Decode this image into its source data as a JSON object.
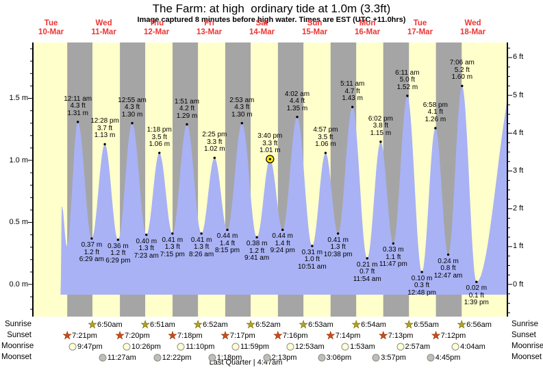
{
  "title": "The Farm: at high  ordinary tide at 1.0m (3.3ft)",
  "subtitle": "Image captured 8 minutes before high water. Times are EST (UTC +11.0hrs)",
  "colors": {
    "day_band": "#ffffcc",
    "night_band": "#a5a5a5",
    "tide_fill": "#a9b2f4",
    "date_text": "#ee3333",
    "axis": "#000000",
    "current_marker": "#ffe800",
    "sunrise_star": "#b3a41f",
    "sunrise_star_edge": "#6b6200",
    "sunset_star": "#d9490f",
    "sunset_star_edge": "#7a2a00",
    "moonrise_fill": "#ffffd6",
    "moonset_fill": "#bfbfb8",
    "moon_edge": "#8a8a8a"
  },
  "chart_data": {
    "type": "area",
    "title": "The Farm: at high  ordinary tide at 1.0m (3.3ft)",
    "subtitle": "Image captured 8 minutes before high water. Times are EST (UTC +11.0hrs)",
    "x_axis": {
      "days": [
        {
          "name": "Tue",
          "date": "10-Mar"
        },
        {
          "name": "Wed",
          "date": "11-Mar"
        },
        {
          "name": "Thu",
          "date": "12-Mar"
        },
        {
          "name": "Fri",
          "date": "13-Mar"
        },
        {
          "name": "Sat",
          "date": "14-Mar"
        },
        {
          "name": "Sun",
          "date": "15-Mar"
        },
        {
          "name": "Mon",
          "date": "16-Mar"
        },
        {
          "name": "Tue",
          "date": "17-Mar"
        },
        {
          "name": "Wed",
          "date": "18-Mar"
        }
      ]
    },
    "y_axis_left": {
      "unit": "m",
      "tick_values": [
        0.0,
        0.5,
        1.0,
        1.5
      ],
      "tick_labels": [
        "0.0 m",
        "0.5 m",
        "1.0 m",
        "1.5 m"
      ],
      "range_m": [
        -0.26,
        1.95
      ]
    },
    "y_axis_right": {
      "unit": "ft",
      "tick_values": [
        0,
        1,
        2,
        3,
        4,
        5,
        6
      ],
      "tick_labels": [
        "0 ft",
        "1 ft",
        "2 ft",
        "3 ft",
        "4 ft",
        "5 ft",
        "6 ft"
      ]
    },
    "extremes": [
      {
        "kind": "high",
        "day": 1,
        "time": "12:11 am",
        "ft": "4.3 ft",
        "m": "1.31 m",
        "m_value": 1.31
      },
      {
        "kind": "low",
        "day": 1,
        "time": "6:29 am",
        "ft": "1.2 ft",
        "m": "0.37 m",
        "m_value": 0.37
      },
      {
        "kind": "high",
        "day": 1,
        "time": "12:28 pm",
        "ft": "3.7 ft",
        "m": "1.13 m",
        "m_value": 1.13
      },
      {
        "kind": "low",
        "day": 1,
        "time": "6:29 pm",
        "ft": "1.2 ft",
        "m": "0.36 m",
        "m_value": 0.36
      },
      {
        "kind": "high",
        "day": 2,
        "time": "12:55 am",
        "ft": "4.3 ft",
        "m": "1.30 m",
        "m_value": 1.3
      },
      {
        "kind": "low",
        "day": 2,
        "time": "7:23 am",
        "ft": "1.3 ft",
        "m": "0.40 m",
        "m_value": 0.4
      },
      {
        "kind": "high",
        "day": 2,
        "time": "1:18 pm",
        "ft": "3.5 ft",
        "m": "1.06 m",
        "m_value": 1.06
      },
      {
        "kind": "low",
        "day": 2,
        "time": "7:15 pm",
        "ft": "1.3 ft",
        "m": "0.41 m",
        "m_value": 0.41
      },
      {
        "kind": "high",
        "day": 3,
        "time": "1:51 am",
        "ft": "4.2 ft",
        "m": "1.29 m",
        "m_value": 1.29
      },
      {
        "kind": "low",
        "day": 3,
        "time": "8:26 am",
        "ft": "1.3 ft",
        "m": "0.41 m",
        "m_value": 0.41
      },
      {
        "kind": "high",
        "day": 3,
        "time": "2:25 pm",
        "ft": "3.3 ft",
        "m": "1.02 m",
        "m_value": 1.02
      },
      {
        "kind": "low",
        "day": 3,
        "time": "8:15 pm",
        "ft": "1.4 ft",
        "m": "0.44 m",
        "m_value": 0.44
      },
      {
        "kind": "high",
        "day": 4,
        "time": "2:53 am",
        "ft": "4.3 ft",
        "m": "1.30 m",
        "m_value": 1.3
      },
      {
        "kind": "low",
        "day": 4,
        "time": "9:41 am",
        "ft": "1.2 ft",
        "m": "0.38 m",
        "m_value": 0.38
      },
      {
        "kind": "high",
        "day": 4,
        "time": "3:40 pm",
        "ft": "3.3 ft",
        "m": "1.01 m",
        "m_value": 1.01,
        "current": true
      },
      {
        "kind": "low",
        "day": 4,
        "time": "9:24 pm",
        "ft": "1.4 ft",
        "m": "0.44 m",
        "m_value": 0.44
      },
      {
        "kind": "high",
        "day": 5,
        "time": "4:02 am",
        "ft": "4.4 ft",
        "m": "1.35 m",
        "m_value": 1.35
      },
      {
        "kind": "low",
        "day": 5,
        "time": "10:51 am",
        "ft": "1.0 ft",
        "m": "0.31 m",
        "m_value": 0.31
      },
      {
        "kind": "high",
        "day": 5,
        "time": "4:57 pm",
        "ft": "3.5 ft",
        "m": "1.06 m",
        "m_value": 1.06
      },
      {
        "kind": "low",
        "day": 5,
        "time": "10:38 pm",
        "ft": "1.3 ft",
        "m": "0.41 m",
        "m_value": 0.41
      },
      {
        "kind": "high",
        "day": 6,
        "time": "5:11 am",
        "ft": "4.7 ft",
        "m": "1.43 m",
        "m_value": 1.43
      },
      {
        "kind": "low",
        "day": 6,
        "time": "11:54 am",
        "ft": "0.7 ft",
        "m": "0.21 m",
        "m_value": 0.21
      },
      {
        "kind": "high",
        "day": 6,
        "time": "6:02 pm",
        "ft": "3.8 ft",
        "m": "1.15 m",
        "m_value": 1.15
      },
      {
        "kind": "low",
        "day": 6,
        "time": "11:47 pm",
        "ft": "1.1 ft",
        "m": "0.33 m",
        "m_value": 0.33
      },
      {
        "kind": "high",
        "day": 7,
        "time": "6:11 am",
        "ft": "5.0 ft",
        "m": "1.52 m",
        "m_value": 1.52
      },
      {
        "kind": "low",
        "day": 7,
        "time": "12:48 pm",
        "ft": "0.3 ft",
        "m": "0.10 m",
        "m_value": 0.1
      },
      {
        "kind": "high",
        "day": 7,
        "time": "6:58 pm",
        "ft": "4.1 ft",
        "m": "1.26 m",
        "m_value": 1.26
      },
      {
        "kind": "low",
        "day": 8,
        "time": "12:47 am",
        "ft": "0.8 ft",
        "m": "0.24 m",
        "m_value": 0.24
      },
      {
        "kind": "high",
        "day": 8,
        "time": "7:06 am",
        "ft": "5.2 ft",
        "m": "1.60 m",
        "m_value": 1.6
      },
      {
        "kind": "low",
        "day": 8,
        "time": "1:39 pm",
        "ft": "0.1 ft",
        "m": "0.02 m",
        "m_value": 0.02
      }
    ],
    "curve_start": {
      "day": 0,
      "time": "4:20 pm",
      "m_value": -0.04
    },
    "edge_extremes": [
      {
        "kind": "high",
        "day": 0,
        "time": "4:54 pm",
        "m_value": 0.63
      },
      {
        "kind": "low",
        "day": 0,
        "time": "7:12 pm",
        "m_value": 0.31
      }
    ],
    "edge_out": {
      "kind": "high",
      "day": 9,
      "time": "8:00 am",
      "m_value": 1.7
    }
  },
  "astro": {
    "rows": [
      {
        "id": "sunrise",
        "label": "Sunrise",
        "icon": "sunrise-star-icon",
        "events": [
          {
            "day": 1,
            "time": "6:50am"
          },
          {
            "day": 2,
            "time": "6:51am"
          },
          {
            "day": 3,
            "time": "6:52am"
          },
          {
            "day": 4,
            "time": "6:52am"
          },
          {
            "day": 5,
            "time": "6:53am"
          },
          {
            "day": 6,
            "time": "6:54am"
          },
          {
            "day": 7,
            "time": "6:55am"
          },
          {
            "day": 8,
            "time": "6:56am"
          }
        ]
      },
      {
        "id": "sunset",
        "label": "Sunset",
        "icon": "sunset-star-icon",
        "events": [
          {
            "day": 0,
            "time": "7:21pm"
          },
          {
            "day": 1,
            "time": "7:20pm"
          },
          {
            "day": 2,
            "time": "7:18pm"
          },
          {
            "day": 3,
            "time": "7:17pm"
          },
          {
            "day": 4,
            "time": "7:16pm"
          },
          {
            "day": 5,
            "time": "7:14pm"
          },
          {
            "day": 6,
            "time": "7:13pm"
          },
          {
            "day": 7,
            "time": "7:12pm"
          }
        ]
      },
      {
        "id": "moonrise",
        "label": "Moonrise",
        "icon": "moonrise-circle-icon",
        "events": [
          {
            "day": 0,
            "time": "9:47pm"
          },
          {
            "day": 1,
            "time": "10:26pm"
          },
          {
            "day": 2,
            "time": "11:10pm"
          },
          {
            "day": 3,
            "time": "11:59pm"
          },
          {
            "day": 5,
            "time": "12:53am"
          },
          {
            "day": 6,
            "time": "1:53am"
          },
          {
            "day": 7,
            "time": "2:57am"
          },
          {
            "day": 8,
            "time": "4:04am"
          }
        ]
      },
      {
        "id": "moonset",
        "label": "Moonset",
        "icon": "moonset-circle-icon",
        "events": [
          {
            "day": 1,
            "time": "11:27am"
          },
          {
            "day": 2,
            "time": "12:22pm"
          },
          {
            "day": 3,
            "time": "1:18pm"
          },
          {
            "day": 4,
            "time": "2:13pm"
          },
          {
            "day": 5,
            "time": "3:06pm"
          },
          {
            "day": 6,
            "time": "3:57pm"
          },
          {
            "day": 7,
            "time": "4:45pm"
          }
        ]
      }
    ],
    "moon_phase": "Last Quarter | 4:47am"
  }
}
